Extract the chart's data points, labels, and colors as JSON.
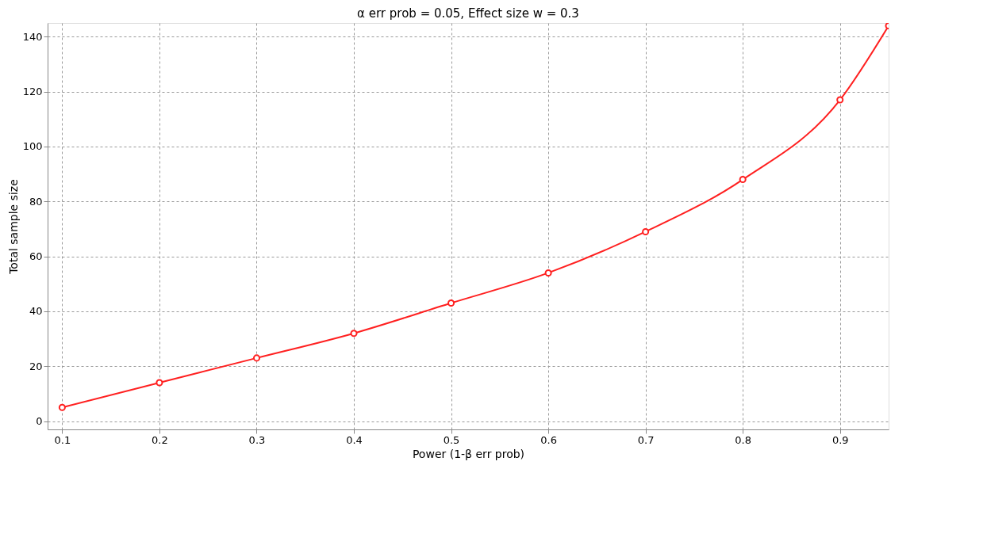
{
  "chart_data": {
    "type": "line",
    "title": "α err prob = 0.05, Effect size w = 0.3",
    "xlabel": "Power (1-β err prob)",
    "ylabel": "Total sample size",
    "x": [
      0.1,
      0.2,
      0.3,
      0.4,
      0.5,
      0.6,
      0.7,
      0.8,
      0.9,
      0.95
    ],
    "series": [
      {
        "color": "#ff2020",
        "values": [
          5,
          14,
          23,
          32,
          43,
          54,
          69,
          88,
          117,
          144
        ]
      }
    ],
    "xlim": [
      0.085,
      0.95
    ],
    "ylim": [
      -3,
      145
    ],
    "xticks": [
      0.1,
      0.2,
      0.3,
      0.4,
      0.5,
      0.6,
      0.7,
      0.8,
      0.9
    ],
    "yticks": [
      0,
      20,
      40,
      60,
      80,
      100,
      120,
      140
    ],
    "grid": true,
    "marker": "circle",
    "line_style": "solid"
  }
}
